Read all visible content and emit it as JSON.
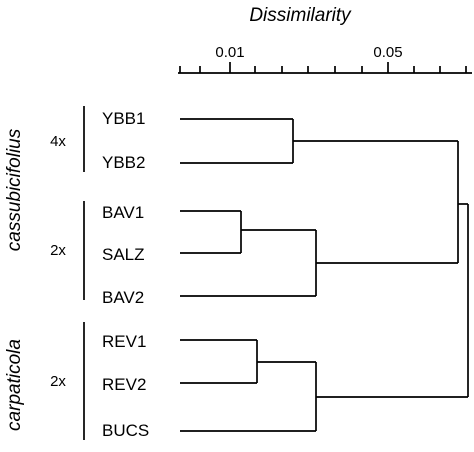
{
  "title": "Dissimilarity",
  "axis_ticks": [
    "0.01",
    "0.05"
  ],
  "leaves": [
    "YBB1",
    "YBB2",
    "BAV1",
    "SALZ",
    "BAV2",
    "REV1",
    "REV2",
    "BUCS"
  ],
  "groups": [
    {
      "name": "cassubicifolius",
      "ploidy_labels": [
        "4x",
        "2x"
      ]
    },
    {
      "name": "carpaticola",
      "ploidy_labels": [
        "2x"
      ]
    }
  ]
}
